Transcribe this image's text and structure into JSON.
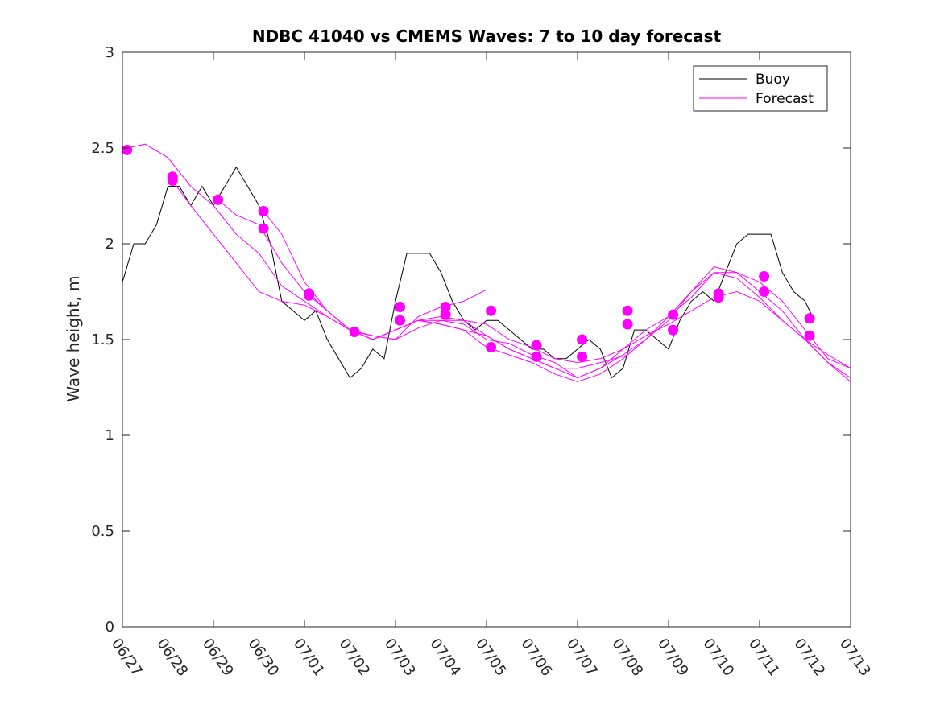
{
  "chart_data": {
    "type": "line",
    "title": "NDBC 41040 vs CMEMS Waves: 7 to 10 day forecast",
    "xlabel": "",
    "ylabel": "Wave height, m",
    "x_unit": "day",
    "xlim": [
      0,
      16
    ],
    "ylim": [
      0,
      3
    ],
    "y_ticks": [
      0,
      0.5,
      1,
      1.5,
      2,
      2.5,
      3
    ],
    "y_tick_labels": [
      "0",
      "0.5",
      "1",
      "1.5",
      "2",
      "2.5",
      "3"
    ],
    "x_ticks": [
      0,
      1,
      2,
      3,
      4,
      5,
      6,
      7,
      8,
      9,
      10,
      11,
      12,
      13,
      14,
      15,
      16
    ],
    "x_tick_labels": [
      "06/27",
      "06/28",
      "06/29",
      "06/30",
      "07/01",
      "07/02",
      "07/03",
      "07/04",
      "07/05",
      "07/06",
      "07/07",
      "07/08",
      "07/09",
      "07/10",
      "07/11",
      "07/12",
      "07/13"
    ],
    "grid": false,
    "legend_position": "top-right",
    "legend": [
      "Buoy",
      "Forecast"
    ],
    "colors": {
      "buoy": "#000000",
      "forecast": "#ff00ff"
    },
    "buoy": {
      "name": "Buoy",
      "x": [
        0,
        0.25,
        0.5,
        0.75,
        1,
        1.25,
        1.5,
        1.75,
        2,
        2.25,
        2.5,
        2.75,
        3,
        3.25,
        3.5,
        3.75,
        4,
        4.25,
        4.5,
        4.75,
        5,
        5.25,
        5.5,
        5.75,
        6,
        6.25,
        6.5,
        6.75,
        7,
        7.25,
        7.5,
        7.75,
        8,
        8.25,
        8.5,
        8.75,
        9,
        9.25,
        9.5,
        9.75,
        10,
        10.25,
        10.5,
        10.75,
        11,
        11.25,
        11.5,
        11.75,
        12,
        12.25,
        12.5,
        12.75,
        13,
        13.25,
        13.5,
        13.75,
        14,
        14.25,
        14.5,
        14.75,
        15,
        15.2
      ],
      "y": [
        1.8,
        2.0,
        2.0,
        2.1,
        2.3,
        2.3,
        2.2,
        2.3,
        2.2,
        2.3,
        2.4,
        2.3,
        2.2,
        2.0,
        1.7,
        1.65,
        1.6,
        1.65,
        1.5,
        1.4,
        1.3,
        1.35,
        1.45,
        1.4,
        1.7,
        1.95,
        1.95,
        1.95,
        1.85,
        1.7,
        1.6,
        1.55,
        1.6,
        1.6,
        1.55,
        1.5,
        1.45,
        1.45,
        1.4,
        1.4,
        1.45,
        1.5,
        1.45,
        1.3,
        1.35,
        1.55,
        1.55,
        1.5,
        1.45,
        1.6,
        1.7,
        1.75,
        1.7,
        1.85,
        2.0,
        2.05,
        2.05,
        2.05,
        1.85,
        1.75,
        1.7,
        1.6
      ]
    },
    "forecast": {
      "name": "Forecast",
      "series": [
        {
          "x": [
            0.1,
            0.5,
            1,
            1.5,
            2,
            2.5,
            3,
            3.5,
            4,
            4.5,
            5,
            5.5,
            6,
            6.5,
            7,
            7.5,
            8
          ],
          "y": [
            2.5,
            2.52,
            2.45,
            2.3,
            2.2,
            2.05,
            1.95,
            1.78,
            1.7,
            1.62,
            1.55,
            1.52,
            1.5,
            1.62,
            1.67,
            1.7,
            1.76
          ]
        },
        {
          "x": [
            1.1,
            1.5,
            2,
            2.5,
            3,
            3.5,
            4,
            4.5,
            5,
            5.5,
            6,
            6.5,
            7,
            7.5,
            8,
            8.5,
            9,
            9.5,
            10,
            10.5,
            11.1
          ],
          "y": [
            2.33,
            2.2,
            2.05,
            1.9,
            1.75,
            1.7,
            1.68,
            1.62,
            1.55,
            1.5,
            1.55,
            1.6,
            1.62,
            1.6,
            1.52,
            1.45,
            1.4,
            1.35,
            1.35,
            1.38,
            1.42
          ]
        },
        {
          "x": [
            2.1,
            2.5,
            3,
            3.5,
            4,
            4.5,
            5,
            5.5,
            6,
            6.5,
            7,
            7.5,
            8,
            8.5,
            9,
            9.5,
            10,
            10.5,
            11,
            11.5,
            12,
            12.5,
            13,
            13.5,
            14,
            14.5,
            15,
            15.5,
            16
          ],
          "y": [
            2.23,
            2.15,
            2.1,
            1.9,
            1.75,
            1.65,
            1.55,
            1.5,
            1.55,
            1.6,
            1.58,
            1.55,
            1.52,
            1.45,
            1.4,
            1.35,
            1.3,
            1.35,
            1.45,
            1.55,
            1.62,
            1.75,
            1.85,
            1.85,
            1.8,
            1.7,
            1.55,
            1.4,
            1.35
          ]
        },
        {
          "x": [
            3.1,
            3.5,
            4,
            4.5,
            5,
            5.5,
            6,
            6.5,
            7,
            7.5,
            8,
            8.5,
            9,
            9.5,
            10,
            10.5,
            11,
            11.5,
            12,
            12.5,
            13,
            13.5,
            14,
            14.5,
            15,
            15.5,
            16
          ],
          "y": [
            2.17,
            2.05,
            1.8,
            1.65,
            1.55,
            1.5,
            1.55,
            1.6,
            1.6,
            1.58,
            1.5,
            1.48,
            1.42,
            1.38,
            1.3,
            1.35,
            1.42,
            1.5,
            1.6,
            1.75,
            1.88,
            1.85,
            1.75,
            1.65,
            1.5,
            1.38,
            1.3
          ]
        },
        {
          "x": [
            4.1,
            4.5,
            5,
            5.5,
            6,
            6.5,
            7,
            7.5,
            8,
            8.5,
            9,
            9.5,
            10,
            10.5,
            11,
            11.5,
            12,
            12.5,
            13,
            13.5,
            14,
            14.5,
            15,
            15.5,
            16
          ],
          "y": [
            1.74,
            1.65,
            1.55,
            1.5,
            1.55,
            1.6,
            1.58,
            1.55,
            1.46,
            1.42,
            1.38,
            1.32,
            1.28,
            1.32,
            1.4,
            1.5,
            1.62,
            1.72,
            1.85,
            1.82,
            1.72,
            1.6,
            1.5,
            1.38,
            1.28
          ]
        },
        {
          "x": [
            5.1,
            5.5,
            6,
            6.5,
            7,
            7.5,
            8,
            8.5,
            9,
            9.5,
            10,
            10.5,
            11,
            11.5,
            12,
            12.5,
            13,
            13.5,
            14,
            14.5,
            15,
            15.5,
            16
          ],
          "y": [
            1.54,
            1.52,
            1.5,
            1.56,
            1.6,
            1.6,
            1.58,
            1.5,
            1.46,
            1.4,
            1.38,
            1.4,
            1.45,
            1.52,
            1.58,
            1.65,
            1.72,
            1.75,
            1.7,
            1.6,
            1.5,
            1.42,
            1.35
          ]
        }
      ]
    },
    "markers": {
      "x": [
        0.1,
        1.1,
        1.1,
        2.1,
        3.1,
        3.1,
        4.1,
        4.1,
        5.1,
        6.1,
        6.1,
        7.1,
        7.1,
        8.1,
        8.1,
        9.1,
        9.1,
        10.1,
        10.1,
        11.1,
        11.1,
        12.1,
        12.1,
        13.1,
        13.1,
        14.1,
        14.1,
        15.1,
        15.1
      ],
      "y": [
        2.49,
        2.35,
        2.33,
        2.23,
        2.17,
        2.08,
        1.74,
        1.73,
        1.54,
        1.67,
        1.6,
        1.67,
        1.63,
        1.65,
        1.46,
        1.47,
        1.41,
        1.5,
        1.41,
        1.65,
        1.58,
        1.63,
        1.55,
        1.74,
        1.72,
        1.83,
        1.75,
        1.61,
        1.52
      ]
    }
  }
}
